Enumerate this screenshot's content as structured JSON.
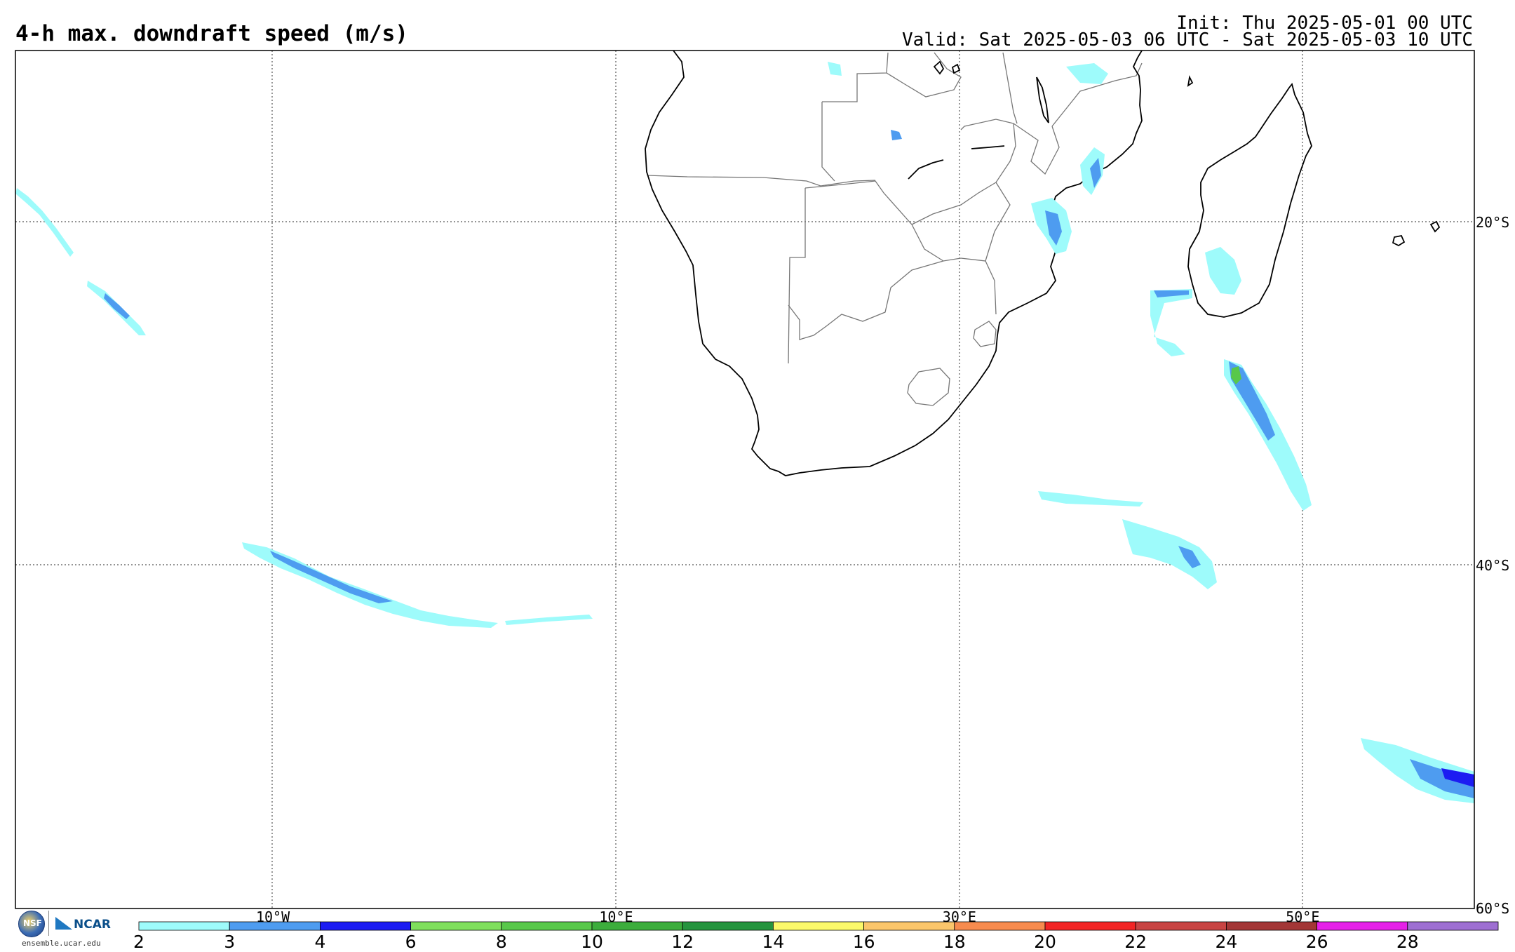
{
  "header": {
    "title": "4-h max. downdraft speed (m/s)",
    "init": "Init: Thu 2025-05-01 00 UTC",
    "valid": "Valid: Sat 2025-05-03 06 UTC - Sat 2025-05-03 10 UTC"
  },
  "map": {
    "lon_range": [
      -25,
      60
    ],
    "lat_range": [
      -60,
      -10
    ],
    "lat_labels": [
      {
        "value": -20,
        "text": "20°S"
      },
      {
        "value": -40,
        "text": "40°S"
      },
      {
        "value": -60,
        "text": "60°S"
      }
    ],
    "lon_labels": [
      {
        "value": -10,
        "text": "10°W"
      },
      {
        "value": 10,
        "text": "10°E"
      },
      {
        "value": 30,
        "text": "30°E"
      },
      {
        "value": 50,
        "text": "50°E"
      }
    ]
  },
  "colorbar": {
    "levels": [
      "2",
      "3",
      "4",
      "6",
      "8",
      "10",
      "12",
      "14",
      "16",
      "18",
      "20",
      "22",
      "24",
      "26",
      "28"
    ],
    "colors": [
      "#9efbfb",
      "#4e9cf0",
      "#1c1cf2",
      "#7fdf5c",
      "#58c84a",
      "#3cad3c",
      "#25943e",
      "#fbf96a",
      "#fbc66b",
      "#f78b4e",
      "#f22525",
      "#c84443",
      "#a33636",
      "#e620e8",
      "#9e6fd2"
    ]
  },
  "logos": {
    "nsf": "NSF",
    "ncar": "NCAR",
    "url": "ensemble.ucar.edu"
  }
}
